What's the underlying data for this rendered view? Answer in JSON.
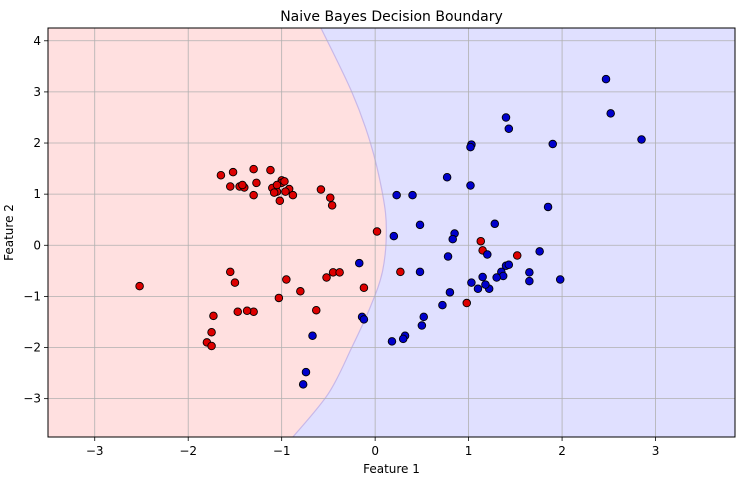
{
  "chart_data": {
    "type": "scatter",
    "title": "Naive Bayes Decision Boundary",
    "xlabel": "Feature 1",
    "ylabel": "Feature 2",
    "xlim": [
      -3.5,
      3.85
    ],
    "ylim": [
      -3.75,
      4.25
    ],
    "xticks": [
      -3,
      -2,
      -1,
      0,
      1,
      2,
      3
    ],
    "yticks": [
      -3,
      -2,
      -1,
      0,
      1,
      2,
      3,
      4
    ],
    "grid": true,
    "legend": "none",
    "colors": {
      "class0_point": "#dd0000",
      "class1_point": "#0000cc",
      "class0_region": "#ffe0e0",
      "class1_region": "#e0e0ff",
      "boundary": "#c8b8e8",
      "point_edge": "#000000",
      "grid": "#b0b0b0"
    },
    "decision_boundary": {
      "x": [
        -0.58,
        -0.25,
        -0.05,
        0.08,
        0.12,
        0.08,
        -0.05,
        -0.25,
        -0.5,
        -0.88
      ],
      "y": [
        4.25,
        3.0,
        2.0,
        1.0,
        0.3,
        -0.5,
        -1.2,
        -2.0,
        -2.9,
        -3.75
      ]
    },
    "series": [
      {
        "class": 0,
        "x": [
          -1.65,
          -1.52,
          -1.45,
          -1.3,
          -1.12,
          -1.0,
          -1.55,
          -1.4,
          -1.42,
          -1.27,
          -1.3,
          -1.1,
          -1.05,
          -1.02,
          -1.08,
          -0.92,
          -0.96,
          -0.88,
          -0.58,
          -0.48,
          -0.46,
          -1.0,
          -0.97,
          -1.05,
          0.02,
          -2.52,
          -1.55,
          -1.5,
          -1.3,
          -1.37,
          -1.47,
          -0.8,
          -0.95,
          -1.03,
          -0.52,
          -0.45,
          -0.38,
          -0.63,
          -0.12,
          -1.73,
          -1.75,
          -1.8,
          -1.75,
          0.27,
          1.13,
          1.15,
          1.52,
          0.98
        ],
        "y": [
          1.37,
          1.43,
          1.15,
          1.49,
          1.47,
          1.27,
          1.15,
          1.13,
          1.18,
          1.22,
          0.98,
          1.12,
          1.05,
          0.87,
          1.03,
          1.1,
          1.05,
          0.98,
          1.09,
          0.93,
          0.78,
          1.22,
          1.25,
          1.18,
          0.27,
          -0.8,
          -0.52,
          -0.73,
          -1.3,
          -1.28,
          -1.3,
          -0.9,
          -0.67,
          -1.03,
          -0.63,
          -0.53,
          -0.53,
          -1.27,
          -0.83,
          -1.38,
          -1.7,
          -1.9,
          -1.97,
          -0.52,
          0.08,
          -0.1,
          -0.2,
          -1.13
        ]
      },
      {
        "class": 1,
        "x": [
          2.47,
          2.52,
          2.85,
          1.4,
          1.43,
          1.03,
          1.02,
          1.9,
          0.77,
          1.02,
          0.23,
          0.4,
          1.85,
          0.48,
          0.85,
          0.83,
          0.2,
          1.28,
          0.78,
          1.2,
          1.1,
          1.35,
          1.4,
          1.43,
          1.76,
          1.98,
          1.65,
          1.65,
          1.37,
          1.3,
          1.22,
          1.15,
          1.18,
          1.03,
          0.48,
          0.8,
          0.72,
          0.52,
          0.5,
          0.32,
          0.3,
          0.18,
          -0.14,
          -0.17,
          -0.67,
          -0.74,
          -0.77,
          -0.12
        ],
        "y": [
          3.25,
          2.58,
          2.07,
          2.5,
          2.28,
          1.97,
          1.92,
          1.98,
          1.33,
          1.17,
          0.98,
          0.98,
          0.75,
          0.4,
          0.23,
          0.12,
          0.18,
          0.42,
          -0.22,
          -0.18,
          -0.85,
          -0.52,
          -0.4,
          -0.38,
          -0.12,
          -0.67,
          -0.7,
          -0.53,
          -0.6,
          -0.63,
          -0.85,
          -0.62,
          -0.77,
          -0.73,
          -0.52,
          -0.92,
          -1.17,
          -1.4,
          -1.57,
          -1.77,
          -1.83,
          -1.88,
          -1.4,
          -0.35,
          -1.77,
          -2.48,
          -2.72,
          -1.45
        ]
      }
    ]
  }
}
